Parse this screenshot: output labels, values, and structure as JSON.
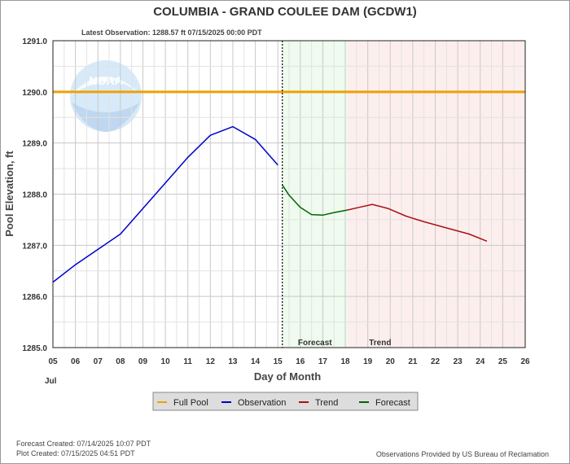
{
  "chart_data": {
    "type": "line",
    "title": "COLUMBIA - GRAND COULEE DAM  (GCDW1)",
    "subtitle": "Latest Observation: 1288.57 ft 07/15/2025 00:00 PDT",
    "xlabel": "Day of Month",
    "ylabel": "Pool Elevation, ft",
    "month_label": "Jul",
    "xlim": [
      5,
      26
    ],
    "ylim": [
      1285.0,
      1291.0
    ],
    "x_ticks": [
      "05",
      "06",
      "07",
      "08",
      "09",
      "10",
      "11",
      "12",
      "13",
      "14",
      "15",
      "16",
      "17",
      "18",
      "19",
      "20",
      "21",
      "22",
      "23",
      "24",
      "25",
      "26"
    ],
    "y_ticks": [
      "1285.0",
      "1286.0",
      "1287.0",
      "1288.0",
      "1289.0",
      "1290.0",
      "1291.0"
    ],
    "grid": true,
    "regions": [
      {
        "name": "Forecast",
        "start": 15.2,
        "end": 18.1,
        "color": "#eefbee"
      },
      {
        "name": "Trend",
        "start": 18.1,
        "end": 26,
        "color": "#fdeeee"
      }
    ],
    "reference_lines": [
      {
        "name": "Full Pool",
        "y": 1290.0,
        "color": "#f0a000"
      }
    ],
    "latest_observation_x": 15.2,
    "series": [
      {
        "name": "Observation",
        "color": "#0000cc",
        "x": [
          5,
          6,
          7,
          8,
          9,
          10,
          11,
          12,
          13,
          14,
          15
        ],
        "y": [
          1286.28,
          1286.62,
          1286.92,
          1287.22,
          1287.72,
          1288.22,
          1288.72,
          1289.15,
          1289.32,
          1289.07,
          1288.57
        ]
      },
      {
        "name": "Forecast",
        "color": "#006600",
        "x": [
          15.2,
          15.5,
          16,
          16.5,
          17,
          17.5,
          18.1
        ],
        "y": [
          1288.18,
          1287.98,
          1287.74,
          1287.6,
          1287.59,
          1287.64,
          1287.69
        ]
      },
      {
        "name": "Trend",
        "color": "#aa1111",
        "x": [
          18.1,
          18.6,
          19.2,
          19.9,
          20.7,
          21.5,
          22.5,
          23.5,
          24.3
        ],
        "y": [
          1287.69,
          1287.74,
          1287.8,
          1287.72,
          1287.57,
          1287.46,
          1287.34,
          1287.22,
          1287.08
        ]
      }
    ],
    "legend": {
      "position": "bottom-center",
      "entries": [
        {
          "label": "Full Pool",
          "color": "#f0a000"
        },
        {
          "label": "Observation",
          "color": "#0000cc"
        },
        {
          "label": "Trend",
          "color": "#aa1111"
        },
        {
          "label": "Forecast",
          "color": "#006600"
        }
      ]
    },
    "footer": {
      "forecast_created": "Forecast Created: 07/14/2025 10:07 PDT",
      "plot_created": "Plot Created: 07/15/2025 04:51 PDT",
      "source": "Observations Provided by US Bureau of Reclamation"
    },
    "watermark_text": "NOAA"
  }
}
